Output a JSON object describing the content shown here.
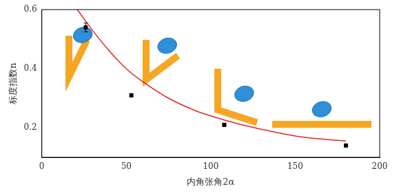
{
  "chart_data": {
    "type": "scatter",
    "x_label": "内角张角2α",
    "y_label": "标度指数n",
    "xlim": [
      0,
      200
    ],
    "xticks": [
      0,
      50,
      100,
      150,
      200
    ],
    "ylim": [
      0.1,
      0.6
    ],
    "yticks": [
      0.2,
      0.4,
      0.6
    ],
    "grid": false,
    "series": [
      {
        "type": "scatter",
        "color": "#000000",
        "marker": "square",
        "x": [
          26,
          53,
          108,
          180
        ],
        "values": [
          0.54,
          0.31,
          0.21,
          0.14
        ],
        "errors": [
          0.015,
          0.005,
          0.005,
          0.005
        ]
      },
      {
        "type": "line",
        "color": "#e8231f",
        "line_style": "solid",
        "x": [
          21,
          30,
          40,
          50,
          60,
          75,
          90,
          100,
          115,
          130,
          150,
          165,
          180
        ],
        "values": [
          0.6,
          0.53,
          0.46,
          0.4,
          0.355,
          0.3,
          0.26,
          0.24,
          0.215,
          0.195,
          0.172,
          0.162,
          0.155
        ]
      }
    ]
  }
}
